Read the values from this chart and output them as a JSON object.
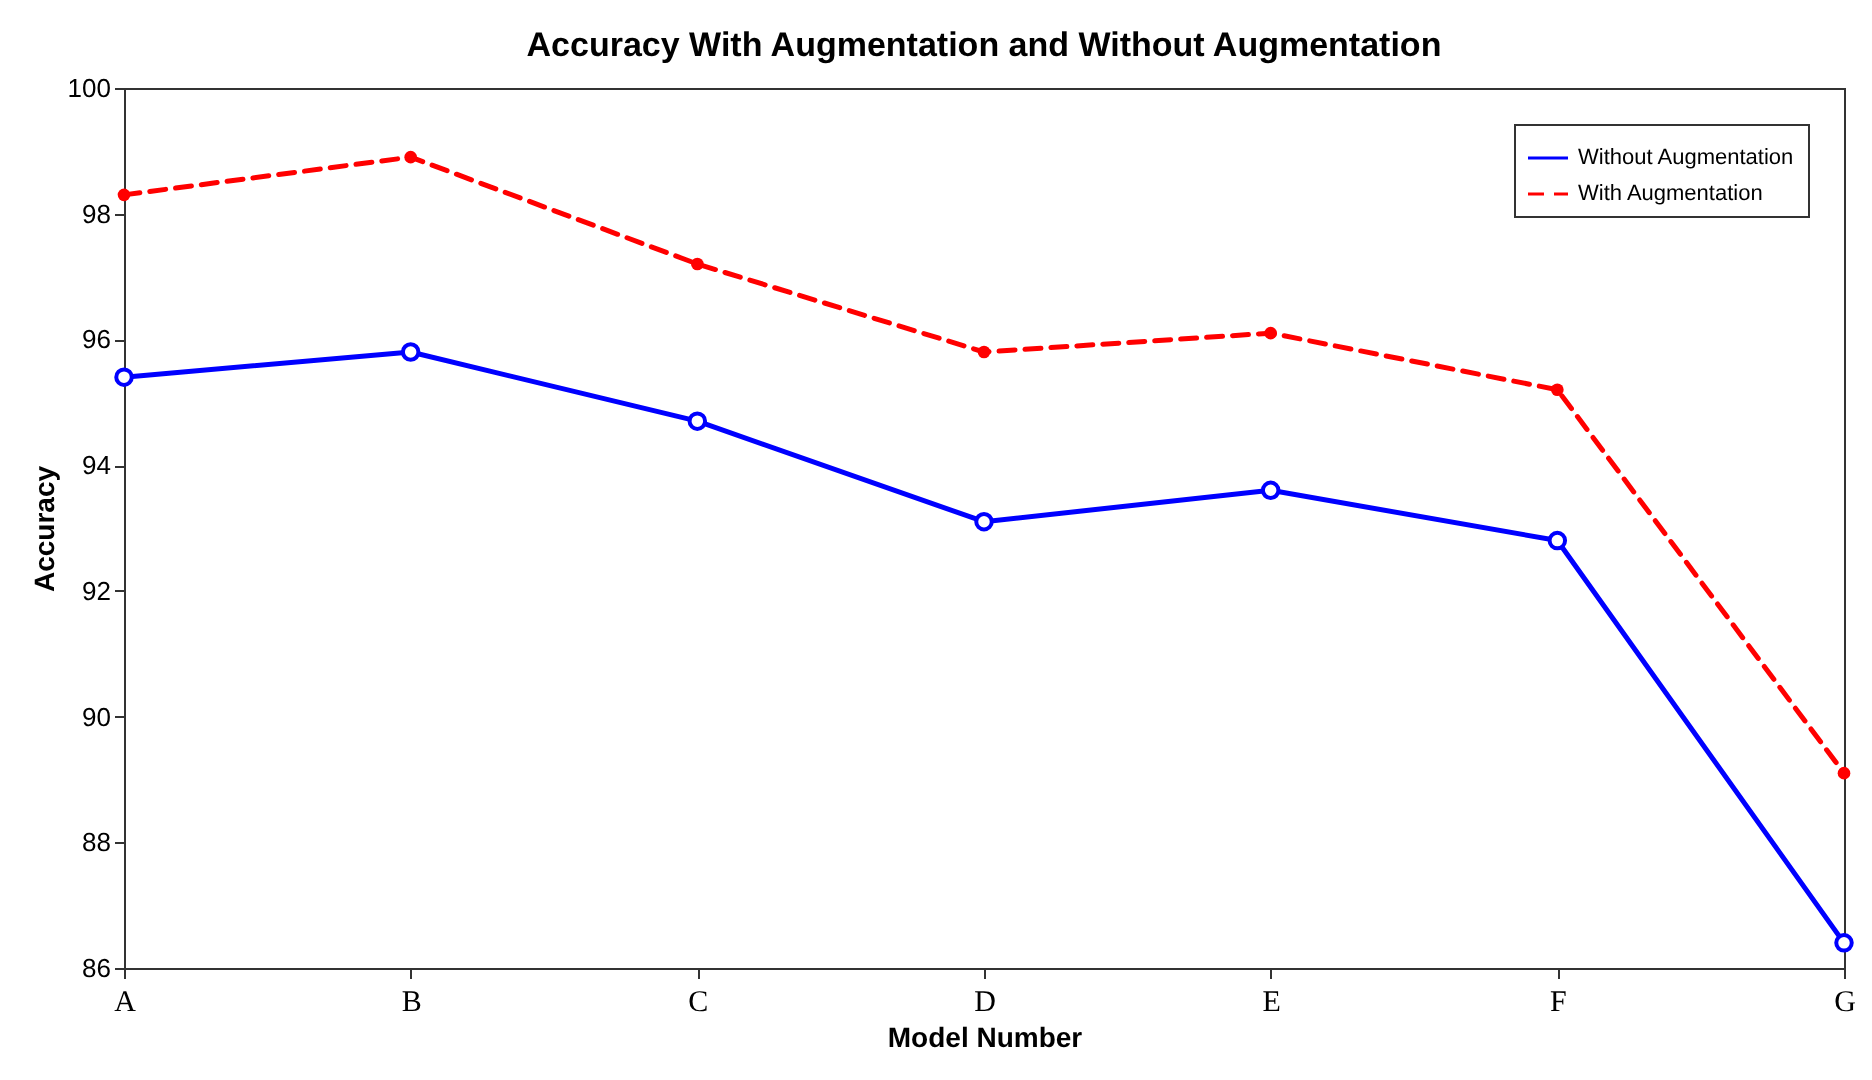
{
  "chart_data": {
    "type": "line",
    "title": "Accuracy With Augmentation and Without Augmentation",
    "xlabel": "Model Number",
    "ylabel": "Accuracy",
    "categories": [
      "A",
      "B",
      "C",
      "D",
      "E",
      "F",
      "G"
    ],
    "series": [
      {
        "name": "Without Augmentation",
        "color": "#0000ff",
        "line_style": "solid",
        "marker": "circle",
        "values": [
          95.4,
          95.8,
          94.7,
          93.1,
          93.6,
          92.8,
          86.4
        ]
      },
      {
        "name": "With Augmentation",
        "color": "#ff0000",
        "line_style": "dashed",
        "marker": "circle",
        "values": [
          98.3,
          98.9,
          97.2,
          95.8,
          96.1,
          95.2,
          89.1
        ]
      }
    ],
    "ylim": [
      86,
      100
    ],
    "yticks": [
      86,
      88,
      90,
      92,
      94,
      96,
      98,
      100
    ],
    "grid": false,
    "legend": "top right"
  }
}
